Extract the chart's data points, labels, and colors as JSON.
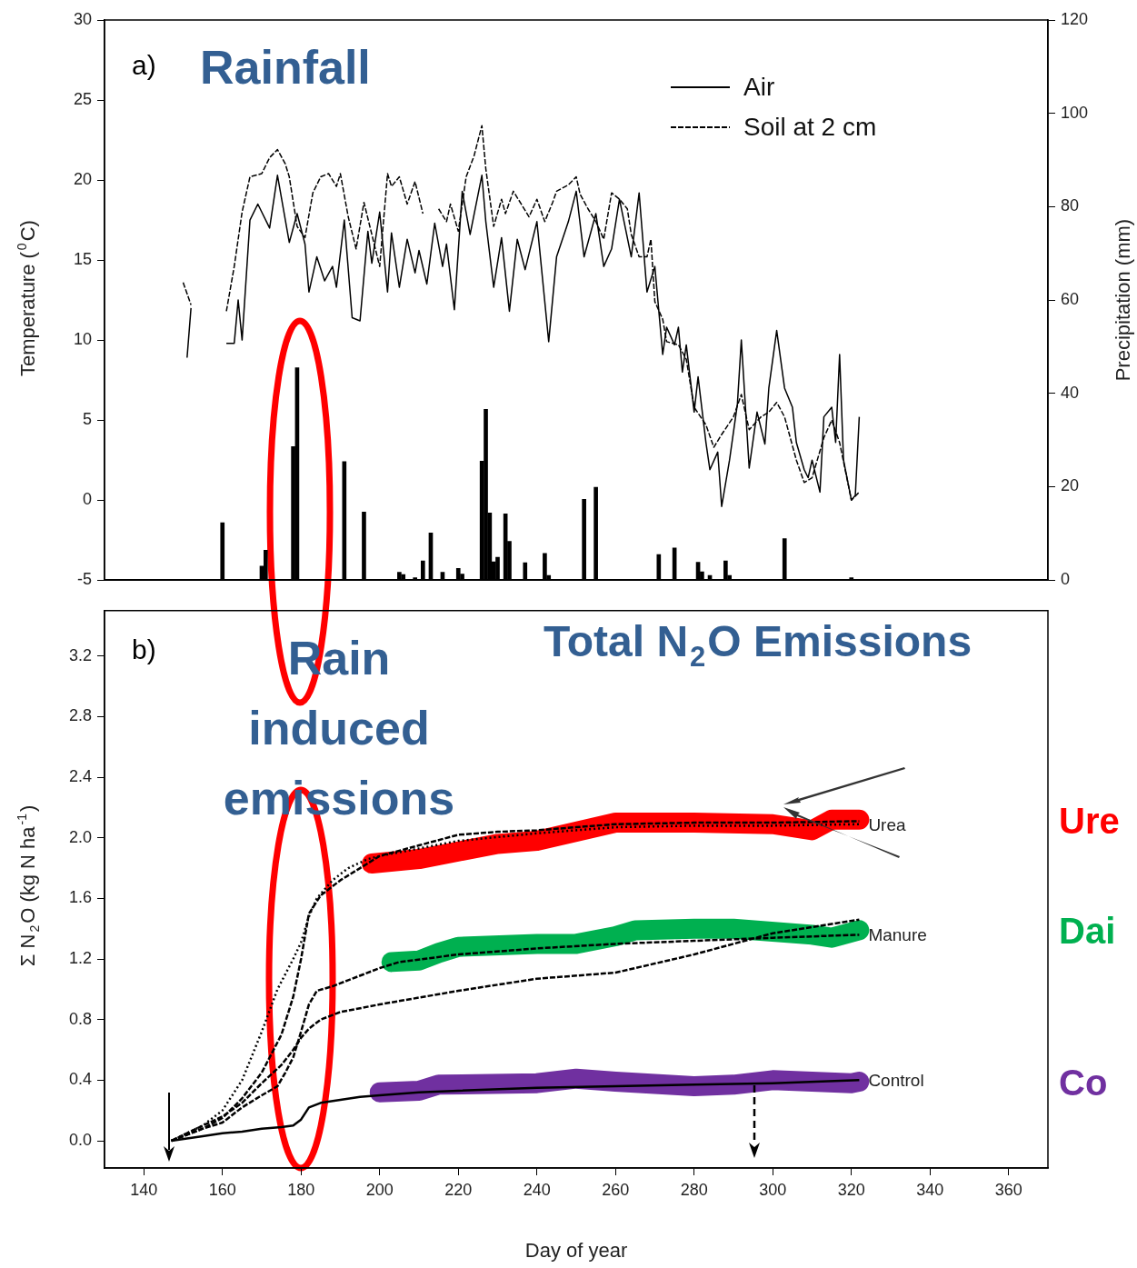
{
  "chart_data": [
    {
      "type": "line",
      "xlim": [
        130,
        370
      ],
      "tick_labels": "y",
      "ylim": [
        -5,
        30
      ],
      "yticks": [
        -5,
        0,
        5,
        10,
        15,
        20,
        25,
        30
      ],
      "y2lim": [
        0,
        120
      ],
      "y2ticks": [
        0,
        20,
        40,
        60,
        80,
        100,
        120
      ],
      "ylabel": "Temperature ($^{0}$C)",
      "y2label": "Precipitation (mm)",
      "legend": "top right",
      "marker": "none",
      "annotations": [
        "a)",
        "Rainfall"
      ],
      "series": [
        {
          "name": "Air",
          "color": "#000000",
          "line_style": "solid",
          "x": [
            151,
            152,
            156,
            161,
            163,
            164,
            165,
            167,
            169,
            172,
            174,
            177,
            179,
            181,
            182,
            184,
            186,
            188,
            189,
            191,
            193,
            195,
            197,
            198,
            200,
            202,
            203,
            205,
            207,
            209,
            210,
            212,
            214,
            216,
            217,
            219,
            221,
            223,
            226,
            227,
            229,
            231,
            233,
            235,
            237,
            240,
            243,
            245,
            248,
            250,
            252,
            255,
            257,
            259,
            261,
            264,
            266,
            268,
            270,
            272,
            273,
            275,
            276,
            277,
            278,
            280,
            281,
            283,
            284,
            286,
            287,
            289,
            291,
            292,
            294,
            296,
            298,
            299,
            301,
            303,
            305,
            306,
            308,
            309,
            310,
            312,
            313,
            315,
            316,
            317,
            318,
            320,
            321,
            322
          ],
          "values": [
            8.9,
            12.0,
            null,
            9.8,
            9.8,
            12.5,
            10.0,
            17.5,
            18.5,
            17.0,
            20.3,
            16.1,
            17.9,
            16.0,
            13.0,
            15.2,
            13.7,
            14.6,
            13.3,
            17.5,
            11.4,
            11.2,
            16.8,
            14.8,
            18.0,
            13.0,
            16.7,
            13.3,
            16.3,
            14.2,
            15.6,
            13.5,
            17.3,
            14.6,
            16.0,
            11.9,
            19.3,
            16.6,
            20.3,
            17.4,
            13.3,
            16.4,
            11.8,
            16.3,
            14.4,
            17.4,
            9.9,
            15.2,
            17.4,
            19.3,
            15.2,
            17.9,
            14.6,
            15.7,
            18.8,
            15.2,
            19.2,
            13.0,
            14.6,
            9.1,
            10.8,
            9.7,
            10.8,
            8.0,
            9.7,
            5.5,
            7.7,
            3.6,
            1.9,
            3.0,
            -0.4,
            2.5,
            6.0,
            10.0,
            2.0,
            5.5,
            3.5,
            7.0,
            10.6,
            7.0,
            5.8,
            3.6,
            1.9,
            1.4,
            2.5,
            0.5,
            5.2,
            5.8,
            3.6,
            9.1,
            2.5,
            0.0,
            0.3,
            5.2
          ]
        },
        {
          "name": "Soil at 2 cm",
          "color": "#000000",
          "line_style": "dashed",
          "x": [
            150,
            152,
            156,
            161,
            163,
            165,
            167,
            170,
            172,
            174,
            176,
            177,
            179,
            181,
            183,
            185,
            187,
            189,
            190,
            192,
            194,
            196,
            198,
            200,
            202,
            203,
            205,
            207,
            209,
            211,
            212,
            215,
            217,
            218,
            220,
            222,
            224,
            226,
            227,
            229,
            231,
            232,
            234,
            236,
            238,
            240,
            242,
            244,
            245,
            248,
            250,
            251,
            253,
            255,
            257,
            259,
            261,
            263,
            264,
            266,
            268,
            269,
            270,
            272,
            273,
            276,
            278,
            280,
            283,
            285,
            287,
            290,
            292,
            294,
            297,
            299,
            301,
            303,
            306,
            308,
            310,
            313,
            315,
            317,
            320,
            322
          ],
          "values": [
            13.6,
            12.2,
            null,
            11.8,
            14.6,
            18.0,
            20.2,
            20.4,
            21.4,
            21.9,
            21.0,
            20.2,
            17.1,
            16.4,
            19.2,
            20.2,
            20.4,
            19.6,
            20.4,
            17.7,
            15.7,
            18.6,
            16.6,
            14.6,
            20.4,
            19.6,
            20.2,
            18.5,
            19.9,
            17.9,
            null,
            18.2,
            17.4,
            18.5,
            16.8,
            20.2,
            21.5,
            23.4,
            20.7,
            17.1,
            18.8,
            17.9,
            19.3,
            18.5,
            17.7,
            18.8,
            17.4,
            18.6,
            19.3,
            19.7,
            20.2,
            19.1,
            18.2,
            17.4,
            16.3,
            19.2,
            18.8,
            18.2,
            16.6,
            15.2,
            15.2,
            16.3,
            12.4,
            11.3,
            9.9,
            9.7,
            8.8,
            5.8,
            4.7,
            3.3,
            4.1,
            5.2,
            6.6,
            4.4,
            5.2,
            5.5,
            6.1,
            5.2,
            2.5,
            1.1,
            1.4,
            3.9,
            5.0,
            3.6,
            0.0,
            0.5
          ]
        },
        {
          "type": "bar",
          "axis": "y2",
          "color": "#000000",
          "x": [
            160,
            170,
            171,
            178,
            179,
            191,
            196,
            205,
            206,
            209,
            211,
            213,
            216,
            220,
            221,
            226,
            227,
            228,
            229,
            230,
            232,
            233,
            237,
            242,
            243,
            252,
            255,
            271,
            275,
            281,
            282,
            284,
            288,
            289,
            303,
            320
          ],
          "values": [
            12.3,
            3.0,
            6.4,
            28.6,
            45.5,
            25.4,
            14.6,
            1.7,
            1.2,
            0.5,
            4.1,
            10.1,
            1.7,
            2.5,
            1.3,
            25.5,
            36.6,
            14.4,
            3.9,
            4.9,
            14.2,
            8.3,
            3.7,
            5.7,
            1.0,
            17.3,
            19.9,
            5.5,
            6.9,
            3.8,
            1.8,
            1.0,
            4.1,
            1.0,
            8.9,
            0.5
          ]
        }
      ]
    },
    {
      "type": "line",
      "xlim": [
        130,
        370
      ],
      "xticks": [
        140,
        160,
        180,
        200,
        220,
        240,
        260,
        280,
        300,
        320,
        340,
        360
      ],
      "xlabel": "Day of year",
      "ylim": [
        -0.18,
        3.5
      ],
      "yticks": [
        {
          "value": 0,
          "label": "0.0"
        },
        0.4,
        0.8,
        1.2,
        1.6,
        {
          "value": 2,
          "label": "2.0"
        },
        2.4,
        2.8,
        3.2
      ],
      "ylabel": "Σ N$_{2}$O (kg N ha$^{-1}$)",
      "legend": false,
      "marker": "none",
      "annotations": [
        "b)",
        "Rain induced emissions",
        "Total N$_{2}$O Emissions"
      ],
      "series": [
        {
          "name": "Control",
          "color": "#000000",
          "line_style": "solid",
          "x": [
            147,
            155,
            160,
            165,
            170,
            175,
            178,
            180,
            182,
            185,
            190,
            195,
            200,
            210,
            220,
            240,
            260,
            280,
            300,
            322
          ],
          "values": [
            0,
            0.03,
            0.05,
            0.06,
            0.08,
            0.09,
            0.1,
            0.14,
            0.22,
            0.25,
            0.27,
            0.29,
            0.3,
            0.32,
            0.33,
            0.35,
            0.36,
            0.37,
            0.38,
            0.4
          ]
        },
        {
          "color": "#000000",
          "line_style": "dashed",
          "x": [
            147,
            155,
            160,
            165,
            170,
            175,
            178,
            180,
            182,
            185,
            190,
            195,
            200,
            210,
            220,
            230,
            240,
            250,
            260,
            280,
            300,
            322
          ],
          "values": [
            0,
            0.08,
            0.15,
            0.28,
            0.45,
            0.7,
            0.95,
            1.2,
            1.5,
            1.62,
            1.72,
            1.8,
            1.88,
            1.95,
            2.02,
            2.04,
            2.05,
            2.07,
            2.09,
            2.1,
            2.1,
            2.11
          ]
        },
        {
          "name": "Urea",
          "color": "#000000",
          "line_style": "dotted",
          "x": [
            147,
            155,
            160,
            165,
            170,
            174,
            178,
            180,
            182,
            184,
            188,
            192,
            197,
            200,
            210,
            220,
            240,
            260,
            280,
            300,
            322
          ],
          "values": [
            0,
            0.1,
            0.2,
            0.4,
            0.72,
            1.0,
            1.2,
            1.31,
            1.48,
            1.6,
            1.72,
            1.8,
            1.86,
            1.88,
            1.93,
            1.98,
            2.03,
            2.07,
            2.08,
            2.08,
            2.09
          ]
        },
        {
          "name": "Manure",
          "color": "#000000",
          "line_style": "dashed",
          "x": [
            147,
            155,
            160,
            165,
            170,
            174,
            176,
            178,
            180,
            182,
            184,
            188,
            192,
            196,
            200,
            205,
            220,
            240,
            260,
            280,
            300,
            322
          ],
          "values": [
            0,
            0.08,
            0.12,
            0.22,
            0.3,
            0.36,
            0.45,
            0.55,
            0.72,
            0.9,
            0.99,
            1.02,
            1.06,
            1.1,
            1.14,
            1.18,
            1.23,
            1.27,
            1.3,
            1.32,
            1.34,
            1.36
          ]
        },
        {
          "color": "#000000",
          "line_style": "dashed",
          "x": [
            147,
            155,
            160,
            165,
            170,
            175,
            178,
            180,
            182,
            185,
            190,
            200,
            220,
            240,
            260,
            280,
            300,
            322
          ],
          "values": [
            0,
            0.1,
            0.16,
            0.25,
            0.38,
            0.5,
            0.6,
            0.68,
            0.74,
            0.8,
            0.85,
            0.9,
            0.99,
            1.07,
            1.11,
            1.23,
            1.37,
            1.46
          ]
        },
        {
          "name": "Ure",
          "color": "#ff0000",
          "line_style": "solid",
          "x": [
            198,
            210,
            220,
            230,
            240,
            250,
            260,
            280,
            300,
            310,
            315,
            322
          ],
          "values": [
            1.83,
            1.86,
            1.91,
            1.96,
            1.98,
            2.04,
            2.1,
            2.1,
            2.09,
            2.05,
            2.12,
            2.12
          ]
        },
        {
          "name": "Dai",
          "color": "#00b050",
          "line_style": "solid",
          "x": [
            203,
            210,
            215,
            220,
            240,
            250,
            260,
            265,
            280,
            290,
            310,
            315,
            322
          ],
          "values": [
            1.18,
            1.19,
            1.24,
            1.28,
            1.3,
            1.3,
            1.35,
            1.39,
            1.4,
            1.4,
            1.36,
            1.34,
            1.39
          ]
        },
        {
          "name": "Co",
          "color": "#7030a0",
          "line_style": "solid",
          "x": [
            200,
            210,
            215,
            240,
            250,
            260,
            280,
            290,
            300,
            320,
            322
          ],
          "values": [
            0.32,
            0.33,
            0.37,
            0.38,
            0.41,
            0.39,
            0.36,
            0.37,
            0.4,
            0.38,
            0.39
          ]
        }
      ]
    }
  ]
}
